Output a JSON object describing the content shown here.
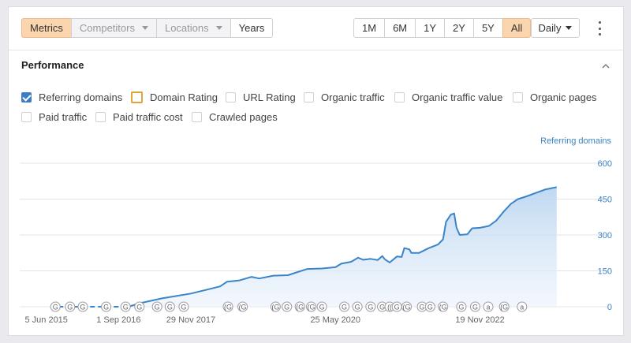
{
  "toolbar": {
    "tabs": [
      {
        "label": "Metrics",
        "state": "active"
      },
      {
        "label": "Competitors",
        "state": "muted",
        "dropdown": true
      },
      {
        "label": "Locations",
        "state": "muted",
        "dropdown": true
      },
      {
        "label": "Years",
        "state": "normal"
      }
    ],
    "ranges": [
      {
        "label": "1M",
        "active": false
      },
      {
        "label": "6M",
        "active": false
      },
      {
        "label": "1Y",
        "active": false
      },
      {
        "label": "2Y",
        "active": false
      },
      {
        "label": "5Y",
        "active": false
      },
      {
        "label": "All",
        "active": true
      }
    ],
    "interval": "Daily",
    "menu_icon": "kebab-menu-icon",
    "active_color": "#fbd5ae"
  },
  "panel": {
    "title": "Performance",
    "collapse_icon": "chevron-up-icon",
    "metrics": [
      {
        "label": "Referring domains",
        "checked": true
      },
      {
        "label": "Domain Rating",
        "checked": false,
        "highlight": "#e0a43a"
      },
      {
        "label": "URL Rating",
        "checked": false
      },
      {
        "label": "Organic traffic",
        "checked": false
      },
      {
        "label": "Organic traffic value",
        "checked": false
      },
      {
        "label": "Organic pages",
        "checked": false
      },
      {
        "label": "Paid traffic",
        "checked": false
      },
      {
        "label": "Paid traffic cost",
        "checked": false
      },
      {
        "label": "Crawled pages",
        "checked": false
      }
    ]
  },
  "chart_data": {
    "type": "area",
    "series": [
      {
        "name": "Referring domains",
        "color": "#3a85c9",
        "points": [
          [
            "2016-11-01",
            0
          ],
          [
            "2017-01-15",
            15
          ],
          [
            "2017-06-01",
            35
          ],
          [
            "2017-11-29",
            55
          ],
          [
            "2018-03-01",
            70
          ],
          [
            "2018-06-01",
            85
          ],
          [
            "2018-07-15",
            105
          ],
          [
            "2018-10-01",
            110
          ],
          [
            "2018-12-15",
            125
          ],
          [
            "2019-02-01",
            118
          ],
          [
            "2019-05-01",
            130
          ],
          [
            "2019-08-01",
            132
          ],
          [
            "2019-10-01",
            145
          ],
          [
            "2019-12-01",
            158
          ],
          [
            "2020-03-01",
            160
          ],
          [
            "2020-05-25",
            165
          ],
          [
            "2020-07-01",
            180
          ],
          [
            "2020-09-01",
            188
          ],
          [
            "2020-10-15",
            205
          ],
          [
            "2020-11-15",
            196
          ],
          [
            "2021-01-01",
            200
          ],
          [
            "2021-02-15",
            195
          ],
          [
            "2021-03-15",
            212
          ],
          [
            "2021-04-01",
            198
          ],
          [
            "2021-05-01",
            185
          ],
          [
            "2021-06-15",
            210
          ],
          [
            "2021-07-15",
            208
          ],
          [
            "2021-08-01",
            245
          ],
          [
            "2021-09-01",
            240
          ],
          [
            "2021-09-15",
            225
          ],
          [
            "2021-11-01",
            225
          ],
          [
            "2022-01-01",
            245
          ],
          [
            "2022-03-01",
            260
          ],
          [
            "2022-04-01",
            282
          ],
          [
            "2022-04-20",
            355
          ],
          [
            "2022-05-20",
            385
          ],
          [
            "2022-06-10",
            390
          ],
          [
            "2022-06-25",
            330
          ],
          [
            "2022-07-15",
            300
          ],
          [
            "2022-09-01",
            303
          ],
          [
            "2022-10-01",
            328
          ],
          [
            "2022-11-19",
            330
          ],
          [
            "2023-01-15",
            338
          ],
          [
            "2023-03-01",
            360
          ],
          [
            "2023-04-20",
            400
          ],
          [
            "2023-06-01",
            430
          ],
          [
            "2023-07-15",
            450
          ],
          [
            "2023-09-01",
            460
          ],
          [
            "2023-11-01",
            475
          ],
          [
            "2024-01-01",
            490
          ],
          [
            "2024-03-15",
            500
          ]
        ]
      }
    ],
    "x_ticks": [
      "5 Jun 2015",
      "1 Sep 2016",
      "29 Nov 2017",
      "25 May 2020",
      "19 Nov 2022"
    ],
    "x_range": [
      "2014-12-20",
      "2025-02-01"
    ],
    "y_axis_label": "Referring domains",
    "y_ticks": [
      0,
      150,
      300,
      450,
      600
    ],
    "ylim": [
      0,
      600
    ],
    "markers": [
      {
        "date": "2015-08-01",
        "label": "G"
      },
      {
        "date": "2015-11-01",
        "label": "G"
      },
      {
        "date": "2016-01-20",
        "label": "G"
      },
      {
        "date": "2016-06-15",
        "label": "G"
      },
      {
        "date": "2016-10-15",
        "label": "G"
      },
      {
        "date": "2017-01-10",
        "label": "G"
      },
      {
        "date": "2017-05-01",
        "label": "G"
      },
      {
        "date": "2017-07-20",
        "label": "G"
      },
      {
        "date": "2017-10-15",
        "label": "G"
      },
      {
        "date": "2018-07-20",
        "label": "(G"
      },
      {
        "date": "2018-10-20",
        "label": "(G"
      },
      {
        "date": "2019-05-15",
        "label": "(G"
      },
      {
        "date": "2019-07-25",
        "label": "G"
      },
      {
        "date": "2019-10-15",
        "label": "(G"
      },
      {
        "date": "2019-12-25",
        "label": "(G"
      },
      {
        "date": "2020-03-01",
        "label": "G"
      },
      {
        "date": "2020-07-20",
        "label": "G"
      },
      {
        "date": "2020-10-10",
        "label": "G"
      },
      {
        "date": "2021-01-01",
        "label": "G"
      },
      {
        "date": "2021-03-15",
        "label": "G"
      },
      {
        "date": "2021-05-01",
        "label": "(("
      },
      {
        "date": "2021-06-15",
        "label": "G"
      },
      {
        "date": "2021-08-15",
        "label": "(G"
      },
      {
        "date": "2021-11-20",
        "label": "G"
      },
      {
        "date": "2022-01-10",
        "label": "G"
      },
      {
        "date": "2022-04-01",
        "label": "(G"
      },
      {
        "date": "2022-07-25",
        "label": "G"
      },
      {
        "date": "2022-10-20",
        "label": "G"
      },
      {
        "date": "2023-01-10",
        "label": "a"
      },
      {
        "date": "2023-04-20",
        "label": "(G"
      },
      {
        "date": "2023-08-10",
        "label": "a"
      }
    ]
  }
}
